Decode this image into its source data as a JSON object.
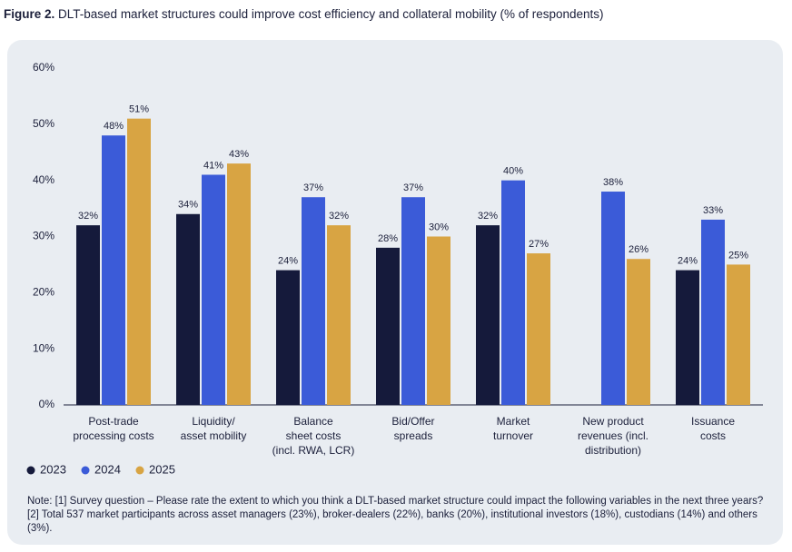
{
  "chart_data": {
    "type": "bar",
    "figure_label": "Figure 2.",
    "title": "DLT-based market structures could improve cost efficiency and collateral mobility (% of respondents)",
    "categories": [
      "Post-trade\nprocessing costs",
      "Liquidity/\nasset mobility",
      "Balance\nsheet costs\n(incl. RWA, LCR)",
      "Bid/Offer\nspreads",
      "Market\nturnover",
      "New product\nrevenues (incl.\ndistribution)",
      "Issuance\ncosts"
    ],
    "series": [
      {
        "name": "2023",
        "color": "#151a3b",
        "values": [
          32,
          34,
          24,
          28,
          32,
          null,
          24
        ],
        "value_labels": [
          "32%",
          "34%",
          "24%",
          "28%",
          "32%",
          null,
          "24%"
        ]
      },
      {
        "name": "2024",
        "color": "#3b5bd8",
        "values": [
          48,
          41,
          37,
          37,
          40,
          38,
          33
        ],
        "value_labels": [
          "48%",
          "41%",
          "37%",
          "37%",
          "40%",
          "38%",
          "33%"
        ]
      },
      {
        "name": "2025",
        "color": "#d8a443",
        "values": [
          51,
          43,
          32,
          30,
          27,
          26,
          25
        ],
        "value_labels": [
          "51%",
          "43%",
          "32%",
          "30%",
          "27%",
          "26%",
          "25%"
        ]
      }
    ],
    "ylim": [
      0,
      60
    ],
    "yticks": [
      {
        "value": 0,
        "label": "0%"
      },
      {
        "value": 10,
        "label": "10%"
      },
      {
        "value": 20,
        "label": "20%"
      },
      {
        "value": 30,
        "label": "30%"
      },
      {
        "value": 40,
        "label": "40%"
      },
      {
        "value": 50,
        "label": "50%"
      },
      {
        "value": 60,
        "label": "60%"
      }
    ],
    "grid": false,
    "legend": "bottom-left",
    "note": "Note: [1] Survey question – Please rate the extent to which you think a DLT-based market structure could impact the following variables in the next three years? [2] Total 537 market participants across asset managers (23%), broker-dealers (22%), banks (20%), institutional investors (18%), custodians (14%) and others (3%)."
  }
}
